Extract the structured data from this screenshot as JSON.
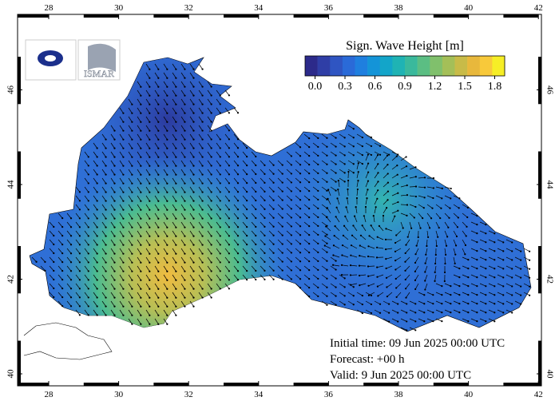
{
  "map": {
    "colorbar": {
      "title": "Sign. Wave Height [m]",
      "range": [
        -0.1,
        1.9
      ],
      "colors": [
        "#2c2a8a",
        "#2f3ea6",
        "#2f55c2",
        "#2a6ad8",
        "#1f7fdf",
        "#1494d8",
        "#13a5c9",
        "#1fb3b4",
        "#3ab99c",
        "#5bbe83",
        "#80c06c",
        "#a4bf58",
        "#c8bb48",
        "#e8b83c",
        "#f8c93a",
        "#f6ee26"
      ],
      "ticks": [
        {
          "value": 0.0,
          "label": "0.0"
        },
        {
          "value": 0.3,
          "label": "0.3"
        },
        {
          "value": 0.6,
          "label": "0.6"
        },
        {
          "value": 0.9,
          "label": "0.9"
        },
        {
          "value": 1.2,
          "label": "1.2"
        },
        {
          "value": 1.5,
          "label": "1.5"
        },
        {
          "value": 1.8,
          "label": "1.8"
        }
      ]
    },
    "lon_ticks": [
      28,
      30,
      32,
      34,
      36,
      38,
      40,
      42
    ],
    "lat_ticks": [
      40,
      42,
      44,
      46
    ],
    "logo_text": "ISMAR",
    "info": [
      "Initial time: 09 Jun 2025 00:00 UTC",
      "Forecast: +00 h",
      "Valid:  9 Jun 2025 00:00 UTC"
    ]
  }
}
